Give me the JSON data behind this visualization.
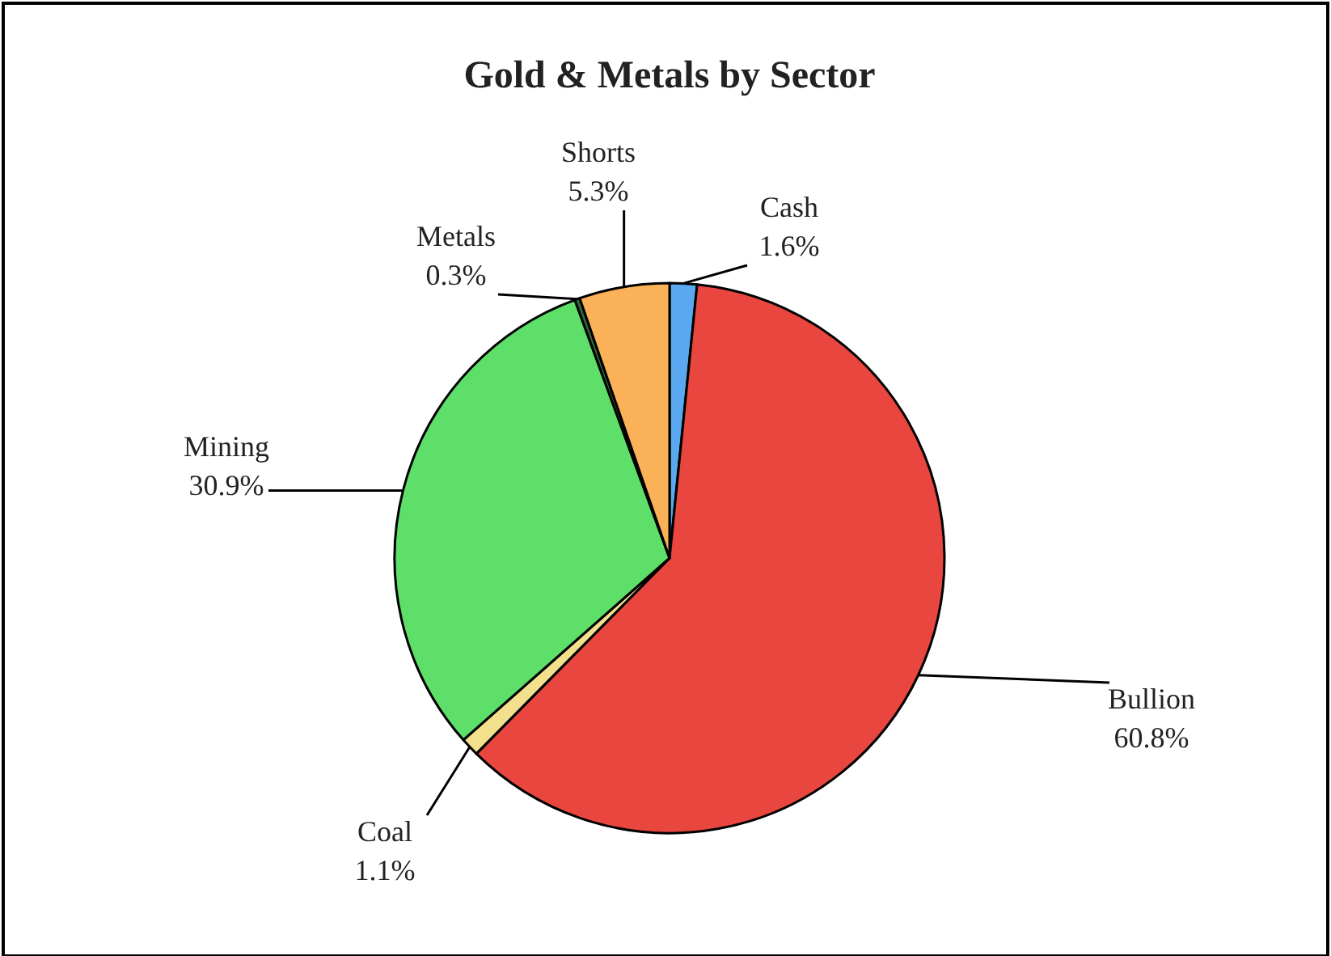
{
  "chart_data": {
    "type": "pie",
    "title": "Gold & Metals by Sector",
    "categories": [
      "Cash",
      "Bullion",
      "Coal",
      "Mining",
      "Metals",
      "Shorts"
    ],
    "values": [
      1.6,
      60.8,
      1.1,
      30.9,
      0.3,
      5.3
    ],
    "colors": [
      "#5aa9f0",
      "#e8463f",
      "#f3e08c",
      "#5ddf6a",
      "#2f6b3a",
      "#fbb158"
    ],
    "value_labels": [
      "1.6%",
      "60.8%",
      "1.1%",
      "30.9%",
      "0.3%",
      "5.3%"
    ]
  }
}
